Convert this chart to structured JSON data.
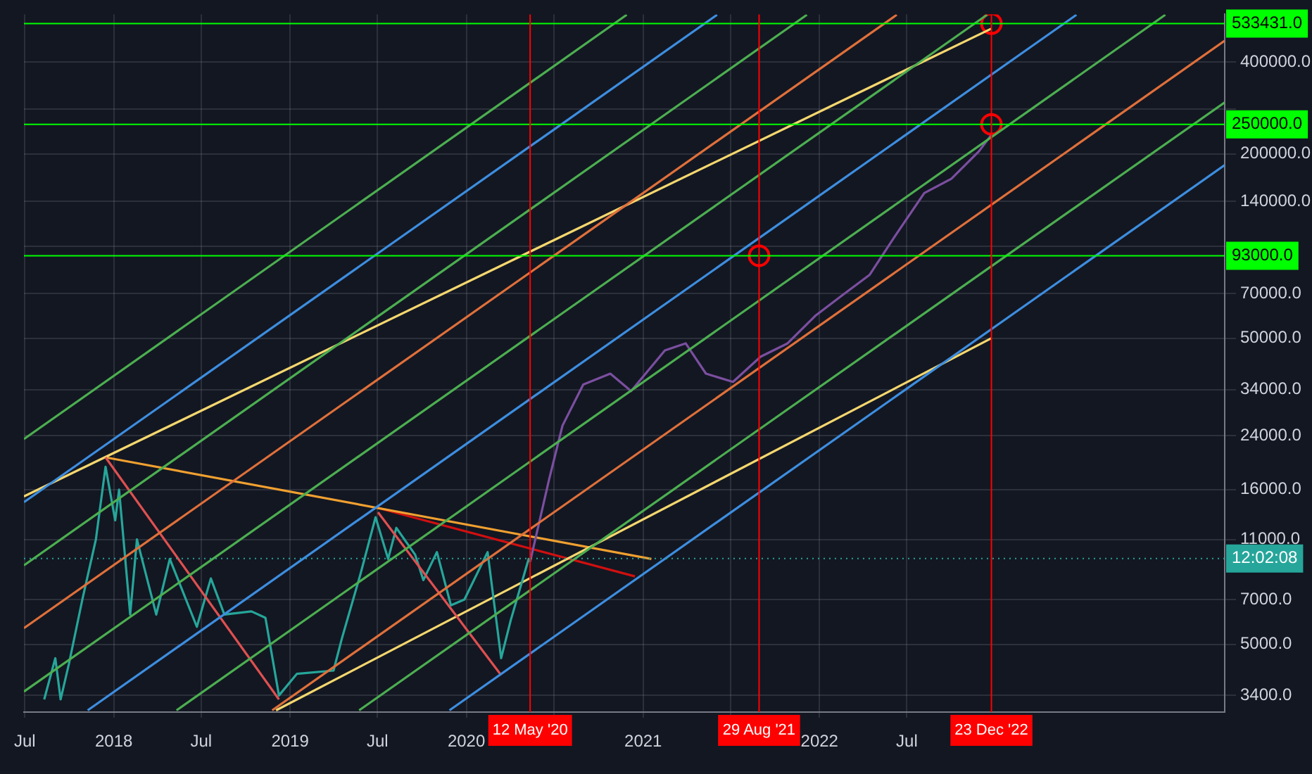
{
  "chart_data": {
    "type": "line",
    "log": true,
    "grid": true,
    "legend": false,
    "marker": "none",
    "xlim": [
      "2017-06-29",
      "2024-04-19"
    ],
    "ylim": [
      3000,
      572000
    ],
    "xticks": [
      {
        "value": "2017-07-01",
        "label": "Jul"
      },
      "2018",
      {
        "value": "2018-07-01",
        "label": "Jul"
      },
      "2019",
      {
        "value": "2019-07-01",
        "label": "Jul"
      },
      "2020",
      {
        "value": "2020-07-01",
        "label": null
      },
      "2021",
      {
        "value": "2021-07-01",
        "label": null
      },
      "2022",
      {
        "value": "2022-07-01",
        "label": "Jul"
      }
    ],
    "yticks": [
      {
        "value": 3400,
        "label": "3400.0"
      },
      {
        "value": 5000,
        "label": "5000.0"
      },
      {
        "value": 7000,
        "label": "7000.0"
      },
      {
        "value": 11000,
        "label": "11000.0"
      },
      {
        "value": 16000,
        "label": "16000.0"
      },
      {
        "value": 24000,
        "label": "24000.0"
      },
      {
        "value": 34000,
        "label": "34000.0"
      },
      {
        "value": 50000,
        "label": "50000.0"
      },
      {
        "value": 70000,
        "label": "70000.0"
      },
      {
        "value": 100000,
        "label": null
      },
      {
        "value": 140000,
        "label": "140000.0"
      },
      {
        "value": 200000,
        "label": "200000.0"
      },
      {
        "value": 280000,
        "label": null
      },
      {
        "value": 400000,
        "label": "400000.0"
      }
    ],
    "ref_lines": [
      {
        "axis": "y",
        "value": 533431,
        "label": "533431.0",
        "color": "#00ff00"
      },
      {
        "axis": "y",
        "value": 250000,
        "label": "250000.0",
        "color": "#00ff00"
      },
      {
        "axis": "y",
        "value": 93000,
        "label": "93000.0",
        "color": "#00ff00"
      },
      {
        "axis": "y",
        "value": 9530,
        "color": "#26a69a",
        "line_style": "dotted"
      },
      {
        "axis": "x",
        "value": "2020-05-12",
        "label": "12 May '20",
        "color": "#ff0000"
      },
      {
        "axis": "x",
        "value": "2021-08-29",
        "label": "29 Aug '21",
        "color": "#ff0000"
      },
      {
        "axis": "x",
        "value": "2022-12-23",
        "label": "23 Dec '22",
        "color": "#ff0000"
      }
    ],
    "annotations": [
      "12:02:08"
    ],
    "series": [
      {
        "color": "#3d8ee0",
        "x": [
          "2019-11-27",
          "2024-04-19"
        ],
        "values": [
          3040,
          184000
        ]
      },
      {
        "color": "#4caf50",
        "x": [
          "2019-05-24",
          "2024-04-19"
        ],
        "values": [
          3040,
          295000
        ]
      },
      {
        "color": "#e0703a",
        "x": [
          "2018-11-25",
          "2024-04-19"
        ],
        "values": [
          3040,
          469000
        ]
      },
      {
        "color": "#4caf50",
        "x": [
          "2018-05-11",
          "2023-12-18"
        ],
        "values": [
          3040,
          570000
        ]
      },
      {
        "color": "#3d8ee0",
        "x": [
          "2017-11-08",
          "2023-06-17"
        ],
        "values": [
          3040,
          570000
        ]
      },
      {
        "color": "#4caf50",
        "x": [
          "2017-06-29",
          "2022-12-14"
        ],
        "values": [
          3500,
          570000
        ]
      },
      {
        "color": "#e0703a",
        "x": [
          "2017-06-29",
          "2022-06-10"
        ],
        "values": [
          5640,
          570000
        ]
      },
      {
        "color": "#4caf50",
        "x": [
          "2017-06-29",
          "2021-12-06"
        ],
        "values": [
          9050,
          570000
        ]
      },
      {
        "color": "#3d8ee0",
        "x": [
          "2017-06-29",
          "2021-06-03"
        ],
        "values": [
          14550,
          570000
        ]
      },
      {
        "color": "#4caf50",
        "x": [
          "2017-06-29",
          "2020-11-28"
        ],
        "values": [
          23400,
          570000
        ]
      },
      {
        "color": "#e05050",
        "x": [
          "2017-12-15",
          "2018-12-09"
        ],
        "values": [
          20400,
          3300
        ]
      },
      {
        "color": "#e05050",
        "x": [
          "2019-07-02",
          "2020-03-13"
        ],
        "values": [
          13500,
          3960
        ]
      },
      {
        "color": "#26a69a",
        "x": [
          "2017-08-10",
          "2017-09-02",
          "2017-09-13",
          "2017-09-30",
          "2017-10-28",
          "2017-11-25",
          "2017-12-15",
          "2018-01-04",
          "2018-01-12",
          "2018-02-04",
          "2018-02-18",
          "2018-03-30",
          "2018-04-27",
          "2018-06-22",
          "2018-07-21",
          "2018-08-18",
          "2018-10-13",
          "2018-11-11",
          "2018-12-09",
          "2019-01-15",
          "2019-04-01",
          "2019-04-18",
          "2019-05-27",
          "2019-06-27",
          "2019-07-23",
          "2019-08-09",
          "2019-09-17",
          "2019-10-04",
          "2019-11-01",
          "2019-11-30",
          "2019-12-28",
          "2020-02-14",
          "2020-03-13",
          "2020-04-02",
          "2020-05-09",
          "2020-05-12"
        ],
        "values": [
          3300,
          4500,
          3300,
          4300,
          7000,
          11000,
          19000,
          12700,
          16000,
          6250,
          11000,
          6250,
          9500,
          5700,
          8200,
          6250,
          6400,
          6100,
          3400,
          4000,
          4100,
          5200,
          8500,
          13000,
          9500,
          12000,
          9800,
          8100,
          10000,
          6700,
          7000,
          10000,
          4500,
          6000,
          9500,
          9300
        ]
      },
      {
        "color": "#7b4fa0",
        "x": [
          "2020-05-12",
          "2020-06-20",
          "2020-07-18",
          "2020-08-30",
          "2020-10-25",
          "2020-12-07",
          "2021-02-15",
          "2021-03-30",
          "2021-05-11",
          "2021-07-06",
          "2021-09-01",
          "2021-10-27",
          "2021-12-23",
          "2022-02-17",
          "2022-04-15",
          "2022-06-10",
          "2022-08-06",
          "2022-10-01",
          "2022-11-27",
          "2022-12-23"
        ],
        "values": [
          9300,
          17200,
          25900,
          35300,
          38300,
          33600,
          45600,
          48100,
          38300,
          36000,
          43500,
          48100,
          59100,
          69000,
          80600,
          110000,
          149000,
          166000,
          204000,
          231000
        ]
      },
      {
        "color": "#f5d76e",
        "x": [
          "2017-06-29",
          "2022-12-23"
        ],
        "values": [
          15200,
          514000
        ]
      },
      {
        "color": "#f5d76e",
        "x": [
          "2018-12-03",
          "2022-12-23"
        ],
        "values": [
          3040,
          50000
        ]
      },
      {
        "color": "#f0a030",
        "x": [
          "2017-12-15",
          "2021-01-18"
        ],
        "values": [
          20400,
          9500
        ]
      },
      {
        "color": "#d01010",
        "x": [
          "2019-06-27",
          "2020-12-15"
        ],
        "values": [
          14000,
          8330
        ]
      },
      {
        "type": "scatter",
        "marker": "circle",
        "color": "#ff0000",
        "x": [
          "2021-08-29",
          "2022-12-23",
          "2022-12-23"
        ],
        "values": [
          93000,
          250000,
          533431
        ]
      }
    ]
  }
}
